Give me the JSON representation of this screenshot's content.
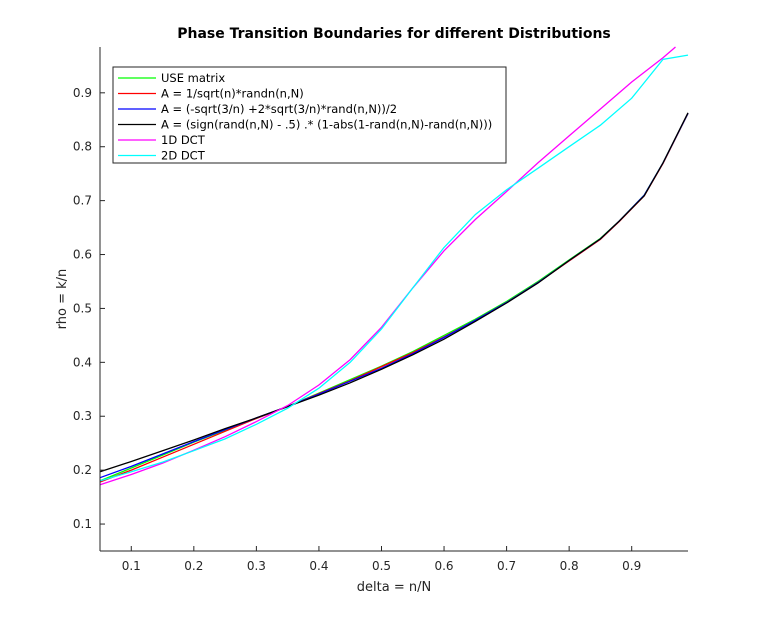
{
  "chart_data": {
    "type": "line",
    "title": "Phase Transition Boundaries for different Distributions",
    "xlabel": "delta = n/N",
    "ylabel": "rho = k/n",
    "xlim": [
      0.05,
      0.99
    ],
    "ylim": [
      0.05,
      0.985
    ],
    "xticks": [
      "0.1",
      "0.2",
      "0.3",
      "0.4",
      "0.5",
      "0.6",
      "0.7",
      "0.8",
      "0.9"
    ],
    "yticks": [
      "0.1",
      "0.2",
      "0.3",
      "0.4",
      "0.5",
      "0.6",
      "0.7",
      "0.8",
      "0.9"
    ],
    "grid": false,
    "legend_position": "top-left",
    "series": [
      {
        "name": "USE matrix",
        "color": "#00ff00",
        "x": [
          0.05,
          0.1,
          0.15,
          0.2,
          0.25,
          0.3,
          0.35,
          0.4,
          0.45,
          0.5,
          0.55,
          0.6,
          0.65,
          0.7,
          0.75,
          0.8,
          0.85,
          0.88,
          0.92,
          0.95,
          0.99
        ],
        "y": [
          0.18,
          0.204,
          0.228,
          0.252,
          0.274,
          0.296,
          0.318,
          0.343,
          0.368,
          0.393,
          0.42,
          0.45,
          0.48,
          0.513,
          0.55,
          0.59,
          0.63,
          0.662,
          0.71,
          0.77,
          0.862
        ]
      },
      {
        "name": "A  = 1/sqrt(n)*randn(n,N)",
        "color": "#ff0000",
        "x": [
          0.05,
          0.1,
          0.15,
          0.2,
          0.25,
          0.3,
          0.35,
          0.4,
          0.45,
          0.5,
          0.55,
          0.6,
          0.65,
          0.7,
          0.75,
          0.8,
          0.85,
          0.88,
          0.92,
          0.95,
          0.99
        ],
        "y": [
          0.178,
          0.2,
          0.224,
          0.248,
          0.272,
          0.296,
          0.318,
          0.342,
          0.366,
          0.392,
          0.418,
          0.447,
          0.478,
          0.511,
          0.548,
          0.588,
          0.628,
          0.661,
          0.709,
          0.769,
          0.862
        ]
      },
      {
        "name": "A = (-sqrt(3/n) +2*sqrt(3/n)*rand(n,N))/2",
        "color": "#0000ff",
        "x": [
          0.05,
          0.1,
          0.15,
          0.2,
          0.25,
          0.3,
          0.35,
          0.4,
          0.45,
          0.5,
          0.55,
          0.6,
          0.65,
          0.7,
          0.75,
          0.8,
          0.85,
          0.88,
          0.92,
          0.95,
          0.99
        ],
        "y": [
          0.186,
          0.207,
          0.23,
          0.253,
          0.275,
          0.297,
          0.318,
          0.341,
          0.365,
          0.389,
          0.416,
          0.446,
          0.478,
          0.511,
          0.548,
          0.589,
          0.629,
          0.662,
          0.71,
          0.77,
          0.862
        ]
      },
      {
        "name": "A = (sign(rand(n,N) - .5) .* (1-abs(1-rand(n,N)-rand(n,N)))",
        "color": "#000000",
        "x": [
          0.05,
          0.1,
          0.15,
          0.2,
          0.25,
          0.3,
          0.35,
          0.4,
          0.45,
          0.5,
          0.55,
          0.6,
          0.65,
          0.7,
          0.75,
          0.8,
          0.85,
          0.88,
          0.92,
          0.95,
          0.99
        ],
        "y": [
          0.197,
          0.216,
          0.236,
          0.256,
          0.277,
          0.297,
          0.318,
          0.339,
          0.362,
          0.387,
          0.414,
          0.443,
          0.476,
          0.51,
          0.547,
          0.589,
          0.629,
          0.662,
          0.709,
          0.77,
          0.863
        ]
      },
      {
        "name": "1D DCT",
        "color": "#ff00ff",
        "x": [
          0.05,
          0.1,
          0.15,
          0.2,
          0.25,
          0.3,
          0.35,
          0.4,
          0.45,
          0.5,
          0.55,
          0.6,
          0.65,
          0.7,
          0.75,
          0.8,
          0.85,
          0.9,
          0.95,
          0.97
        ],
        "y": [
          0.173,
          0.192,
          0.213,
          0.237,
          0.262,
          0.29,
          0.32,
          0.358,
          0.405,
          0.465,
          0.538,
          0.607,
          0.665,
          0.717,
          0.77,
          0.82,
          0.87,
          0.92,
          0.965,
          0.985
        ]
      },
      {
        "name": "2D DCT",
        "color": "#00ffff",
        "x": [
          0.05,
          0.1,
          0.15,
          0.2,
          0.25,
          0.3,
          0.35,
          0.4,
          0.45,
          0.5,
          0.55,
          0.6,
          0.65,
          0.7,
          0.75,
          0.8,
          0.85,
          0.9,
          0.95,
          0.99
        ],
        "y": [
          0.18,
          0.197,
          0.215,
          0.236,
          0.258,
          0.285,
          0.315,
          0.352,
          0.4,
          0.462,
          0.538,
          0.613,
          0.674,
          0.72,
          0.76,
          0.8,
          0.84,
          0.89,
          0.962,
          0.97
        ]
      }
    ]
  }
}
